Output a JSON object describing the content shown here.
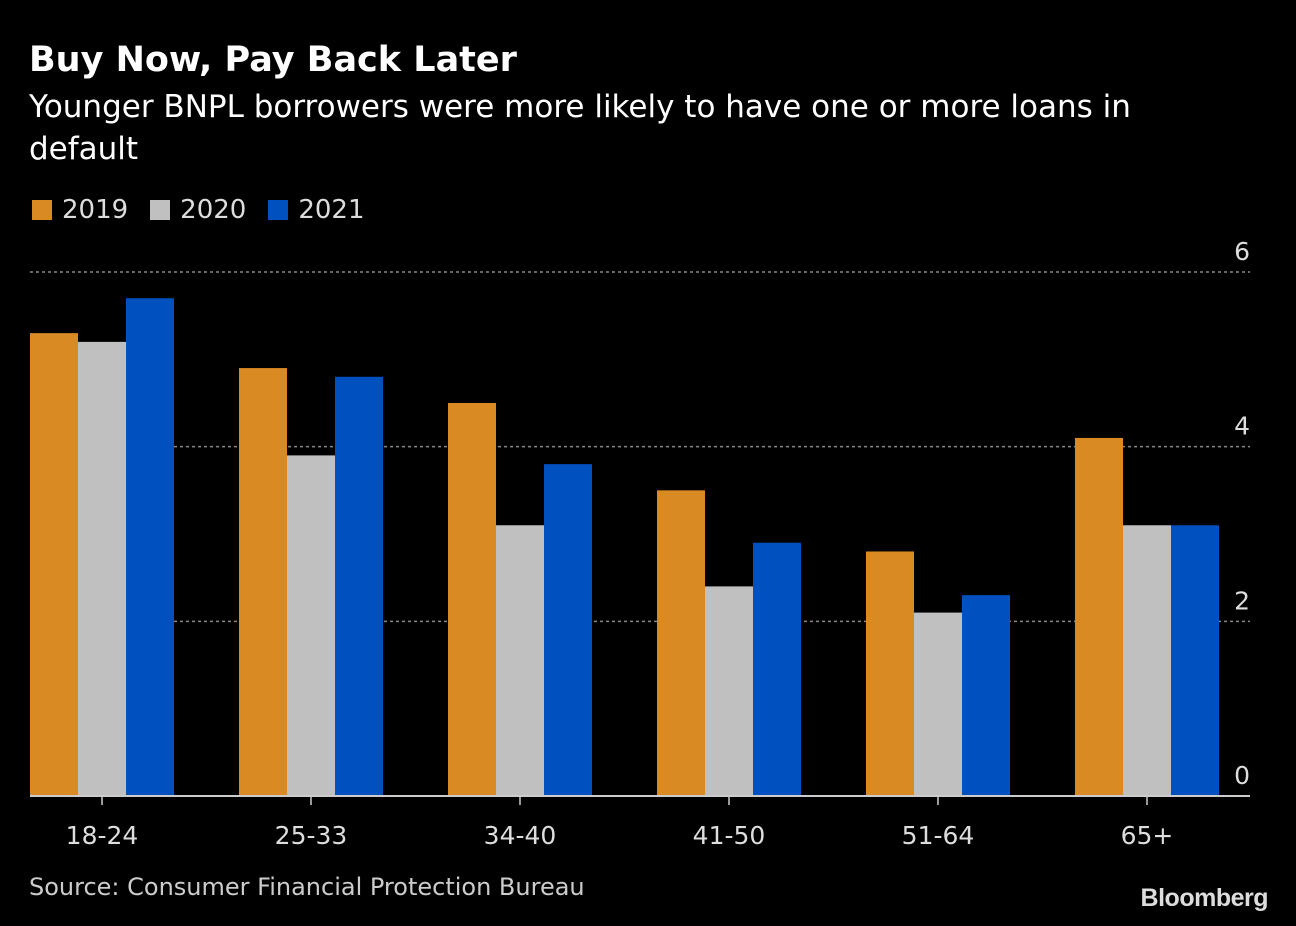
{
  "chart_data": {
    "type": "bar",
    "title": "Buy Now, Pay Back Later",
    "subtitle": "Younger BNPL borrowers were more likely to have one or more loans in default",
    "categories": [
      "18-24",
      "25-33",
      "34-40",
      "41-50",
      "51-64",
      "65+"
    ],
    "series": [
      {
        "name": "2019",
        "color": "#d98a22",
        "values": [
          5.3,
          4.9,
          4.5,
          3.5,
          2.8,
          4.1
        ]
      },
      {
        "name": "2020",
        "color": "#c0c0c0",
        "values": [
          5.2,
          3.9,
          3.1,
          2.4,
          2.1,
          3.1
        ]
      },
      {
        "name": "2021",
        "color": "#0050c0",
        "values": [
          5.7,
          4.8,
          3.8,
          2.9,
          2.3,
          3.1
        ]
      }
    ],
    "ylim": [
      0,
      6
    ],
    "yticks": [
      "0",
      "2",
      "4",
      "6"
    ],
    "grid": true,
    "legend_position": "top-left",
    "xlabel": "",
    "ylabel": "",
    "source": "Source: Consumer Financial Protection Bureau",
    "logo": "Bloomberg"
  }
}
